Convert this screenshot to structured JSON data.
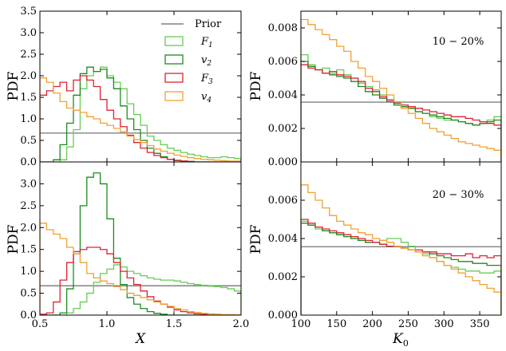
{
  "figure": {
    "background": "#ffffff"
  },
  "legend": {
    "entries": [
      {
        "label": "Prior",
        "color": "#808080",
        "kind": "line"
      },
      {
        "label": "F1",
        "color": "#66cc55",
        "kind": "box"
      },
      {
        "label": "v2",
        "color": "#1e8a1e",
        "kind": "box"
      },
      {
        "label": "F3",
        "color": "#dd2233",
        "kind": "box"
      },
      {
        "label": "v4",
        "color": "#f0a030",
        "kind": "box"
      }
    ]
  },
  "chart_data": [
    {
      "id": "top-left",
      "type": "histogram-step",
      "ylabel": "PDF",
      "xlabel": "",
      "xlim": [
        0.5,
        2.0
      ],
      "ylim": [
        0,
        3.5
      ],
      "xticks": [],
      "yticks": [
        "0.0",
        "0.5",
        "1.0",
        "1.5",
        "2.0",
        "2.5",
        "3.0",
        "3.5"
      ],
      "annotation": "",
      "prior": 0.67,
      "edges": [
        0.5,
        0.55,
        0.6,
        0.65,
        0.7,
        0.75,
        0.8,
        0.85,
        0.9,
        0.95,
        1.0,
        1.05,
        1.1,
        1.15,
        1.2,
        1.25,
        1.3,
        1.35,
        1.4,
        1.45,
        1.5,
        1.55,
        1.6,
        1.65,
        1.7,
        1.75,
        1.8,
        1.85,
        1.9,
        1.95,
        2.0
      ],
      "series": [
        {
          "name": "F1",
          "color": "#66cc55",
          "values": [
            0.0,
            0.0,
            0.0,
            0.05,
            0.35,
            0.75,
            1.7,
            2.0,
            2.1,
            2.2,
            2.0,
            1.85,
            1.7,
            1.35,
            1.1,
            0.85,
            0.6,
            0.5,
            0.4,
            0.32,
            0.27,
            0.22,
            0.18,
            0.15,
            0.12,
            0.1,
            0.1,
            0.12,
            0.1,
            0.08
          ]
        },
        {
          "name": "v2",
          "color": "#1e8a1e",
          "values": [
            0.0,
            0.0,
            0.05,
            0.4,
            0.9,
            1.55,
            2.05,
            2.2,
            2.1,
            2.15,
            1.95,
            1.7,
            1.3,
            1.0,
            0.75,
            0.5,
            0.32,
            0.2,
            0.12,
            0.06,
            0.03,
            0.02,
            0.01,
            0.0,
            0.0,
            0.0,
            0.0,
            0.0,
            0.0,
            0.0
          ]
        },
        {
          "name": "F3",
          "color": "#dd2233",
          "values": [
            1.55,
            1.65,
            1.75,
            1.85,
            1.65,
            1.9,
            2.0,
            1.9,
            1.75,
            1.45,
            1.2,
            1.0,
            0.82,
            0.62,
            0.45,
            0.32,
            0.22,
            0.15,
            0.1,
            0.06,
            0.04,
            0.02,
            0.01,
            0.0,
            0.0,
            0.0,
            0.0,
            0.0,
            0.0,
            0.0
          ]
        },
        {
          "name": "v4",
          "color": "#f0a030",
          "values": [
            1.95,
            1.85,
            1.6,
            1.4,
            1.25,
            1.2,
            1.15,
            1.05,
            1.0,
            0.9,
            0.85,
            0.78,
            0.7,
            0.6,
            0.52,
            0.45,
            0.38,
            0.3,
            0.25,
            0.2,
            0.16,
            0.13,
            0.1,
            0.08,
            0.06,
            0.05,
            0.04,
            0.03,
            0.02,
            0.02
          ]
        }
      ]
    },
    {
      "id": "bottom-left",
      "type": "histogram-step",
      "ylabel": "PDF",
      "xlabel": "X",
      "xlim": [
        0.5,
        2.0
      ],
      "ylim": [
        0,
        3.5
      ],
      "xticks": [
        "0.5",
        "1.0",
        "1.5",
        "2.0"
      ],
      "yticks": [
        "0.0",
        "0.5",
        "1.0",
        "1.5",
        "2.0",
        "2.5",
        "3.0"
      ],
      "annotation": "",
      "prior": 0.67,
      "edges": [
        0.5,
        0.55,
        0.6,
        0.65,
        0.7,
        0.75,
        0.8,
        0.85,
        0.9,
        0.95,
        1.0,
        1.05,
        1.1,
        1.15,
        1.2,
        1.25,
        1.3,
        1.35,
        1.4,
        1.45,
        1.5,
        1.55,
        1.6,
        1.65,
        1.7,
        1.75,
        1.8,
        1.85,
        1.9,
        1.95,
        2.0
      ],
      "series": [
        {
          "name": "F1",
          "color": "#66cc55",
          "values": [
            0.0,
            0.0,
            0.0,
            0.0,
            0.05,
            0.15,
            0.3,
            0.5,
            0.75,
            0.95,
            1.05,
            1.15,
            1.1,
            1.0,
            0.95,
            0.9,
            0.85,
            0.82,
            0.8,
            0.8,
            0.78,
            0.75,
            0.72,
            0.7,
            0.68,
            0.66,
            0.65,
            0.63,
            0.6,
            0.55
          ]
        },
        {
          "name": "v2",
          "color": "#1e8a1e",
          "values": [
            0.0,
            0.0,
            0.0,
            0.05,
            0.6,
            1.4,
            2.5,
            3.15,
            3.25,
            3.0,
            2.2,
            1.3,
            0.7,
            0.4,
            0.25,
            0.15,
            0.08,
            0.04,
            0.02,
            0.0,
            0.0,
            0.0,
            0.0,
            0.0,
            0.0,
            0.0,
            0.0,
            0.0,
            0.0,
            0.0
          ]
        },
        {
          "name": "F3",
          "color": "#dd2233",
          "values": [
            0.02,
            0.05,
            0.3,
            0.8,
            1.2,
            1.45,
            1.5,
            1.55,
            1.55,
            1.5,
            1.4,
            1.2,
            1.0,
            0.85,
            0.7,
            0.55,
            0.42,
            0.32,
            0.25,
            0.18,
            0.12,
            0.08,
            0.05,
            0.03,
            0.02,
            0.0,
            0.0,
            0.0,
            0.0,
            0.0
          ]
        },
        {
          "name": "v4",
          "color": "#f0a030",
          "values": [
            2.1,
            1.95,
            1.85,
            1.75,
            1.55,
            1.4,
            1.2,
            0.95,
            0.85,
            0.78,
            0.72,
            0.65,
            0.58,
            0.5,
            0.45,
            0.4,
            0.35,
            0.3,
            0.25,
            0.2,
            0.15,
            0.12,
            0.08,
            0.06,
            0.04,
            0.03,
            0.02,
            0.01,
            0.01,
            0.0
          ]
        }
      ]
    },
    {
      "id": "top-right",
      "type": "histogram-step",
      "ylabel": "PDF",
      "xlabel": "",
      "xlim": [
        100,
        380
      ],
      "ylim": [
        0,
        0.009
      ],
      "xticks": [],
      "yticks": [
        "0.000",
        "0.002",
        "0.004",
        "0.006",
        "0.008"
      ],
      "annotation": "10 − 20%",
      "prior": 0.00357,
      "edges": [
        100,
        110,
        120,
        130,
        140,
        150,
        160,
        170,
        180,
        190,
        200,
        210,
        220,
        230,
        240,
        250,
        260,
        270,
        280,
        290,
        300,
        310,
        320,
        330,
        340,
        350,
        360,
        370,
        380
      ],
      "series": [
        {
          "name": "F1",
          "color": "#66cc55",
          "values": [
            0.0064,
            0.0058,
            0.0055,
            0.0056,
            0.0053,
            0.0055,
            0.0052,
            0.005,
            0.0047,
            0.0045,
            0.0043,
            0.004,
            0.0037,
            0.0034,
            0.0033,
            0.0032,
            0.003,
            0.0029,
            0.0027,
            0.0026,
            0.0025,
            0.0025,
            0.0024,
            0.0023,
            0.0022,
            0.0023,
            0.0025,
            0.0027
          ]
        },
        {
          "name": "v2",
          "color": "#1e8a1e",
          "values": [
            0.006,
            0.0057,
            0.0055,
            0.0053,
            0.0052,
            0.0051,
            0.005,
            0.0048,
            0.0045,
            0.0042,
            0.004,
            0.0038,
            0.0036,
            0.0034,
            0.0033,
            0.0032,
            0.003,
            0.0029,
            0.0028,
            0.0027,
            0.0026,
            0.0025,
            0.0024,
            0.0023,
            0.0022,
            0.0023,
            0.0024,
            0.0025
          ]
        },
        {
          "name": "F3",
          "color": "#dd2233",
          "values": [
            0.0058,
            0.0056,
            0.0055,
            0.0053,
            0.0054,
            0.0052,
            0.0051,
            0.005,
            0.0048,
            0.0044,
            0.0042,
            0.0039,
            0.0037,
            0.0035,
            0.0034,
            0.0033,
            0.0032,
            0.0031,
            0.003,
            0.0029,
            0.0028,
            0.0027,
            0.0027,
            0.0026,
            0.0025,
            0.0024,
            0.0023,
            0.0022
          ]
        },
        {
          "name": "v4",
          "color": "#f0a030",
          "values": [
            0.0085,
            0.0082,
            0.0079,
            0.0076,
            0.0073,
            0.0069,
            0.0066,
            0.006,
            0.0056,
            0.0051,
            0.0048,
            0.0044,
            0.004,
            0.0036,
            0.0032,
            0.0029,
            0.0026,
            0.0023,
            0.002,
            0.0018,
            0.0016,
            0.0014,
            0.0012,
            0.0011,
            0.001,
            0.0009,
            0.0008,
            0.0007
          ]
        }
      ]
    },
    {
      "id": "bottom-right",
      "type": "histogram-step",
      "ylabel": "PDF",
      "xlabel": "K0",
      "xlim": [
        100,
        380
      ],
      "ylim": [
        0,
        0.008
      ],
      "xticks": [
        "100",
        "150",
        "200",
        "250",
        "300",
        "350"
      ],
      "yticks": [
        "0.000",
        "0.002",
        "0.004",
        "0.006"
      ],
      "annotation": "20 − 30%",
      "prior": 0.00357,
      "edges": [
        100,
        110,
        120,
        130,
        140,
        150,
        160,
        170,
        180,
        190,
        200,
        210,
        220,
        230,
        240,
        250,
        260,
        270,
        280,
        290,
        300,
        310,
        320,
        330,
        340,
        350,
        360,
        370,
        380
      ],
      "series": [
        {
          "name": "F1",
          "color": "#66cc55",
          "values": [
            0.0049,
            0.0047,
            0.0045,
            0.0044,
            0.0043,
            0.0042,
            0.0041,
            0.004,
            0.0039,
            0.0038,
            0.0038,
            0.0039,
            0.004,
            0.004,
            0.0038,
            0.0036,
            0.0034,
            0.0032,
            0.003,
            0.0028,
            0.0026,
            0.0025,
            0.0024,
            0.0023,
            0.0023,
            0.0022,
            0.0022,
            0.0023
          ]
        },
        {
          "name": "v2",
          "color": "#1e8a1e",
          "values": [
            0.0048,
            0.0047,
            0.0046,
            0.0044,
            0.0043,
            0.0042,
            0.0041,
            0.004,
            0.0039,
            0.0038,
            0.0038,
            0.0037,
            0.0036,
            0.0036,
            0.0035,
            0.0034,
            0.0033,
            0.0033,
            0.0032,
            0.0031,
            0.003,
            0.0029,
            0.0028,
            0.0028,
            0.0027,
            0.0027,
            0.0026,
            0.0026
          ]
        },
        {
          "name": "F3",
          "color": "#dd2233",
          "values": [
            0.005,
            0.0048,
            0.0046,
            0.0045,
            0.0044,
            0.0043,
            0.0042,
            0.0041,
            0.004,
            0.0039,
            0.0038,
            0.0037,
            0.0036,
            0.0036,
            0.0035,
            0.0034,
            0.0034,
            0.0033,
            0.0033,
            0.0032,
            0.0032,
            0.0031,
            0.0031,
            0.0032,
            0.003,
            0.0031,
            0.003,
            0.0031
          ]
        },
        {
          "name": "v4",
          "color": "#f0a030",
          "values": [
            0.0068,
            0.0064,
            0.006,
            0.0056,
            0.0052,
            0.0049,
            0.0047,
            0.0045,
            0.0043,
            0.0042,
            0.004,
            0.0039,
            0.0038,
            0.0036,
            0.0035,
            0.0034,
            0.0033,
            0.0031,
            0.003,
            0.0028,
            0.0026,
            0.0024,
            0.0022,
            0.002,
            0.0018,
            0.0016,
            0.0014,
            0.0012
          ]
        }
      ]
    }
  ]
}
